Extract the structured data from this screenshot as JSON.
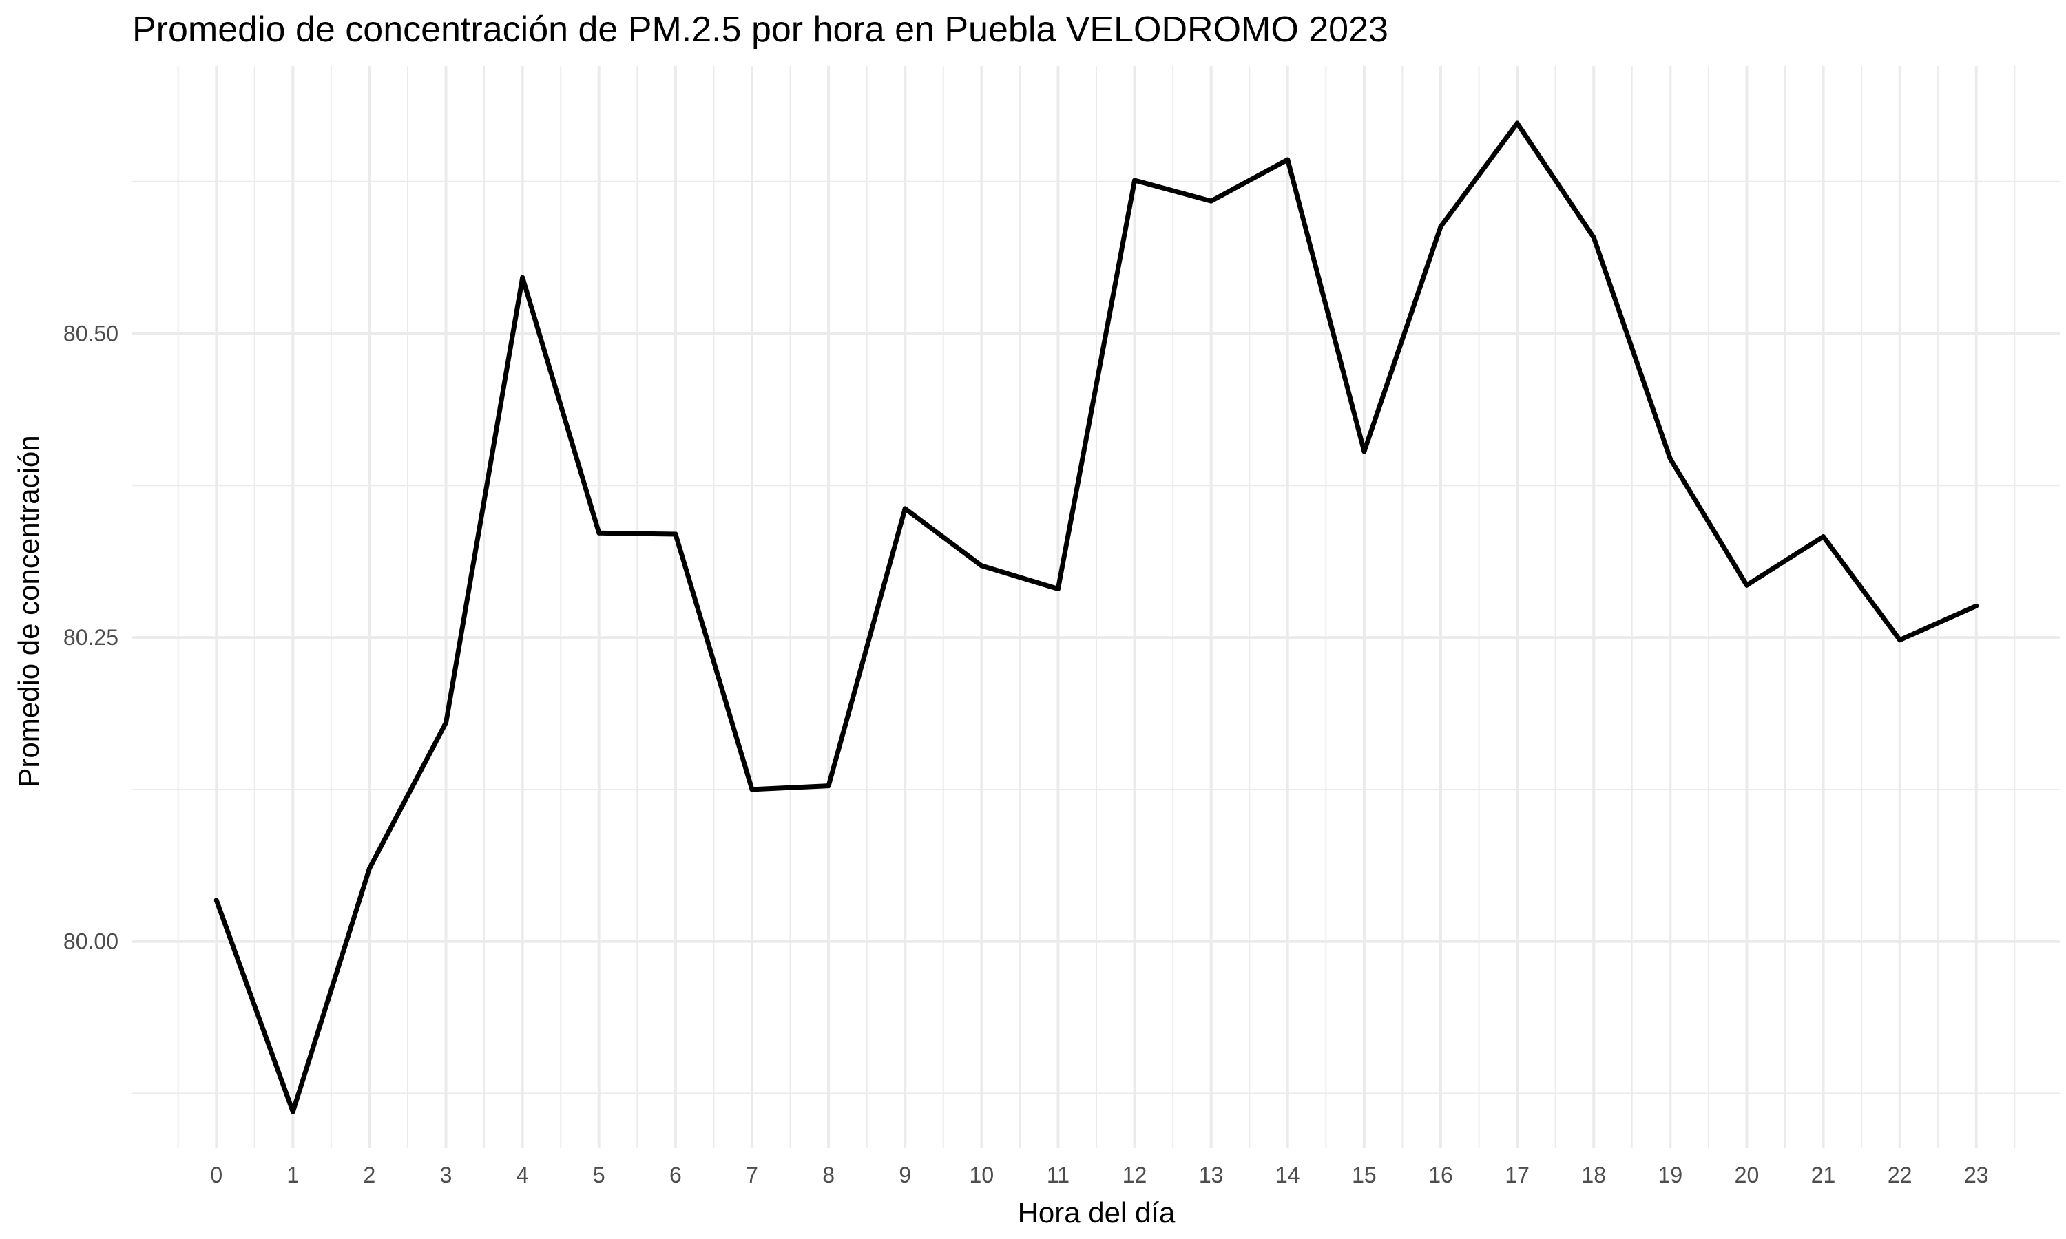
{
  "chart_data": {
    "type": "line",
    "title": "Promedio de concentración de PM.2.5 por hora en Puebla VELODROMO 2023",
    "xlabel": "Hora del día",
    "ylabel": "Promedio de concentración",
    "x": [
      0,
      1,
      2,
      3,
      4,
      5,
      6,
      7,
      8,
      9,
      10,
      11,
      12,
      13,
      14,
      15,
      16,
      17,
      18,
      19,
      20,
      21,
      22,
      23
    ],
    "x_tick_labels": [
      "0",
      "1",
      "2",
      "3",
      "4",
      "5",
      "6",
      "7",
      "8",
      "9",
      "10",
      "11",
      "12",
      "13",
      "14",
      "15",
      "16",
      "17",
      "18",
      "19",
      "20",
      "21",
      "22",
      "23"
    ],
    "series": [
      {
        "values": [
          80.034,
          79.86,
          80.06,
          80.18,
          80.546,
          80.336,
          80.335,
          80.125,
          80.128,
          80.356,
          80.309,
          80.29,
          80.626,
          80.609,
          80.643,
          80.403,
          80.588,
          80.673,
          80.579,
          80.397,
          80.293,
          80.333,
          80.248,
          80.276
        ],
        "color": "#000000"
      }
    ],
    "y_ticks": [
      80.0,
      80.25,
      80.5
    ],
    "y_tick_labels": [
      "80.00",
      "80.25",
      "80.50"
    ],
    "ylim": [
      79.83,
      80.72
    ],
    "xlim": [
      -1.1,
      24.1
    ],
    "grid": true
  }
}
